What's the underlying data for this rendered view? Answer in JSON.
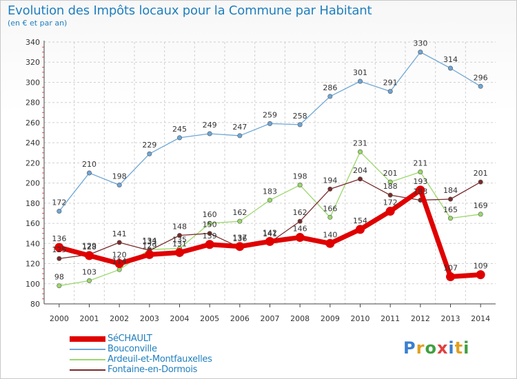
{
  "title": "Evolution des Impôts locaux pour la Commune par Habitant",
  "subtitle": "(en € et par an)",
  "logo": {
    "text": "Proxiti",
    "letter_colors": [
      "#3a7fd0",
      "#e0a020",
      "#40a040",
      "#e04040",
      "#3a7fd0",
      "#e0a020",
      "#40a040"
    ]
  },
  "chart_data": {
    "type": "line",
    "x": [
      "2000",
      "2001",
      "2002",
      "2003",
      "2004",
      "2005",
      "2006",
      "2007",
      "2008",
      "2009",
      "2010",
      "2011",
      "2012",
      "2013",
      "2014"
    ],
    "ylim": [
      80,
      340
    ],
    "yticks": [
      80,
      100,
      120,
      140,
      160,
      180,
      200,
      220,
      240,
      260,
      280,
      300,
      320,
      340
    ],
    "grid": true,
    "legend_position": "bottom-left",
    "series": [
      {
        "name": "SéCHAULT",
        "color": "#e00000",
        "values": [
          136,
          128,
          120,
          129,
          131,
          139,
          137,
          142,
          146,
          140,
          154,
          172,
          193,
          107,
          109
        ]
      },
      {
        "name": "Bouconville",
        "color": "#6ea6d6",
        "values": [
          172,
          210,
          198,
          229,
          245,
          249,
          247,
          259,
          258,
          286,
          301,
          291,
          330,
          314,
          296
        ]
      },
      {
        "name": "Ardeuil-et-Montfauxelles",
        "color": "#9ad86a",
        "values": [
          98,
          103,
          114,
          134,
          135,
          160,
          162,
          183,
          198,
          166,
          231,
          201,
          211,
          165,
          169
        ]
      },
      {
        "name": "Fontaine-en-Dormois",
        "color": "#7a2a2a",
        "values": [
          125,
          129,
          141,
          133,
          148,
          150,
          136,
          141,
          162,
          194,
          204,
          188,
          183,
          184,
          201
        ]
      }
    ]
  }
}
